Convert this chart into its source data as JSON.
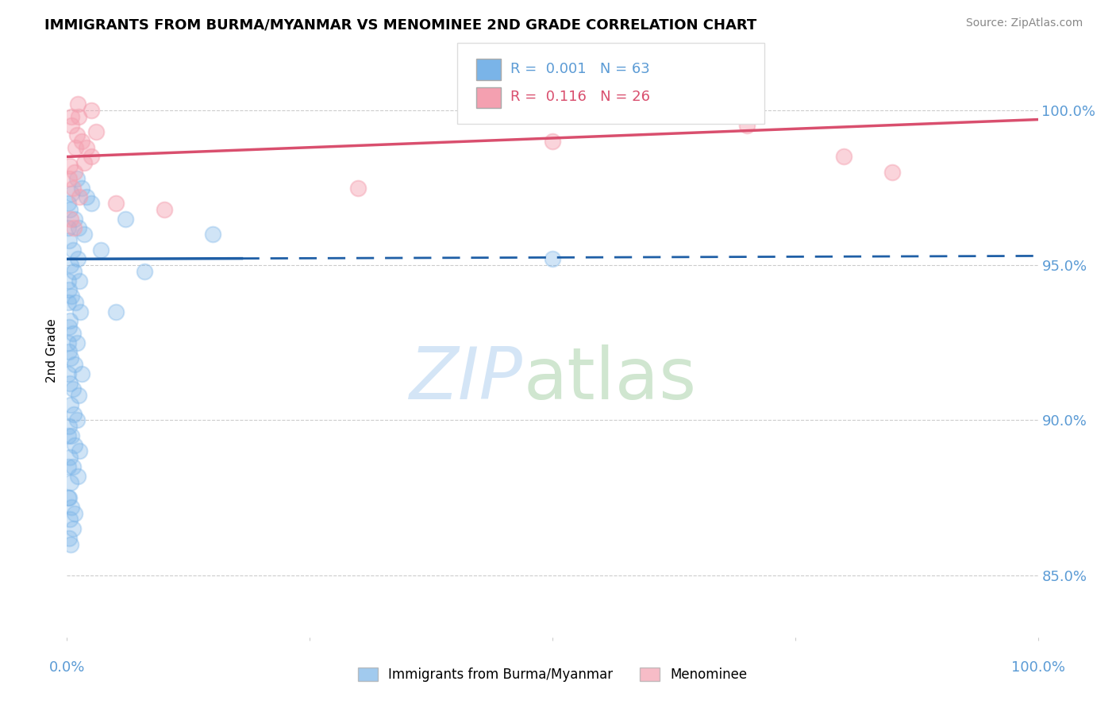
{
  "title": "IMMIGRANTS FROM BURMA/MYANMAR VS MENOMINEE 2ND GRADE CORRELATION CHART",
  "source": "Source: ZipAtlas.com",
  "ylabel": "2nd Grade",
  "xlim": [
    0.0,
    100.0
  ],
  "ylim": [
    83.0,
    101.5
  ],
  "yticks": [
    85.0,
    90.0,
    95.0,
    100.0
  ],
  "blue_R": 0.001,
  "blue_N": 63,
  "pink_R": 0.116,
  "pink_N": 26,
  "blue_label": "Immigrants from Burma/Myanmar",
  "pink_label": "Menominee",
  "blue_color": "#7ab4e8",
  "pink_color": "#f4a0b0",
  "blue_line_color": "#1f5fa6",
  "pink_line_color": "#d94f6e",
  "blue_scatter": [
    [
      0.5,
      97.3
    ],
    [
      1.0,
      97.8
    ],
    [
      1.5,
      97.5
    ],
    [
      2.0,
      97.2
    ],
    [
      2.5,
      97.0
    ],
    [
      0.3,
      96.8
    ],
    [
      0.8,
      96.5
    ],
    [
      1.2,
      96.2
    ],
    [
      1.8,
      96.0
    ],
    [
      0.2,
      95.8
    ],
    [
      0.6,
      95.5
    ],
    [
      1.1,
      95.2
    ],
    [
      0.4,
      95.0
    ],
    [
      0.7,
      94.8
    ],
    [
      1.3,
      94.5
    ],
    [
      0.2,
      94.2
    ],
    [
      0.5,
      94.0
    ],
    [
      0.9,
      93.8
    ],
    [
      1.4,
      93.5
    ],
    [
      0.3,
      93.2
    ],
    [
      0.6,
      92.8
    ],
    [
      1.0,
      92.5
    ],
    [
      0.2,
      92.2
    ],
    [
      0.4,
      92.0
    ],
    [
      0.8,
      91.8
    ],
    [
      1.5,
      91.5
    ],
    [
      0.3,
      91.2
    ],
    [
      0.6,
      91.0
    ],
    [
      1.2,
      90.8
    ],
    [
      0.4,
      90.5
    ],
    [
      0.7,
      90.2
    ],
    [
      1.0,
      90.0
    ],
    [
      0.2,
      89.8
    ],
    [
      0.5,
      89.5
    ],
    [
      0.8,
      89.2
    ],
    [
      1.3,
      89.0
    ],
    [
      0.3,
      88.8
    ],
    [
      0.6,
      88.5
    ],
    [
      1.1,
      88.2
    ],
    [
      0.4,
      88.0
    ],
    [
      0.2,
      87.5
    ],
    [
      0.5,
      87.2
    ],
    [
      0.8,
      87.0
    ],
    [
      0.3,
      86.8
    ],
    [
      0.6,
      86.5
    ],
    [
      0.2,
      86.2
    ],
    [
      0.4,
      86.0
    ],
    [
      0.2,
      93.0
    ],
    [
      6.0,
      96.5
    ],
    [
      0.1,
      97.0
    ],
    [
      3.5,
      95.5
    ],
    [
      15.0,
      96.0
    ],
    [
      50.0,
      95.2
    ],
    [
      0.1,
      94.5
    ],
    [
      0.1,
      93.8
    ],
    [
      0.1,
      92.5
    ],
    [
      0.1,
      91.5
    ],
    [
      0.1,
      89.5
    ],
    [
      0.1,
      88.5
    ],
    [
      0.1,
      87.5
    ],
    [
      5.0,
      93.5
    ],
    [
      0.1,
      96.2
    ],
    [
      8.0,
      94.8
    ]
  ],
  "pink_scatter": [
    [
      0.5,
      99.5
    ],
    [
      1.0,
      99.2
    ],
    [
      1.5,
      99.0
    ],
    [
      2.0,
      98.8
    ],
    [
      2.5,
      98.5
    ],
    [
      0.3,
      98.2
    ],
    [
      0.8,
      98.0
    ],
    [
      1.2,
      99.8
    ],
    [
      3.0,
      99.3
    ],
    [
      0.2,
      97.8
    ],
    [
      0.6,
      97.5
    ],
    [
      1.1,
      100.2
    ],
    [
      50.0,
      99.0
    ],
    [
      70.0,
      99.5
    ],
    [
      80.0,
      98.5
    ],
    [
      85.0,
      98.0
    ],
    [
      0.4,
      96.5
    ],
    [
      0.7,
      96.2
    ],
    [
      1.3,
      97.2
    ],
    [
      0.9,
      98.8
    ],
    [
      2.5,
      100.0
    ],
    [
      5.0,
      97.0
    ],
    [
      10.0,
      96.8
    ],
    [
      1.8,
      98.3
    ],
    [
      0.5,
      99.8
    ],
    [
      30.0,
      97.5
    ]
  ],
  "blue_trend_y_intercept": 95.2,
  "blue_trend_slope": 0.001,
  "blue_solid_end": 18,
  "pink_trend_y_intercept": 98.5,
  "pink_trend_slope": 0.012,
  "background_color": "#ffffff",
  "grid_color": "#cccccc",
  "axis_label_color": "#5b9bd5",
  "legend_R_color_blue": "#5b9bd5",
  "legend_R_color_pink": "#d94f6e"
}
